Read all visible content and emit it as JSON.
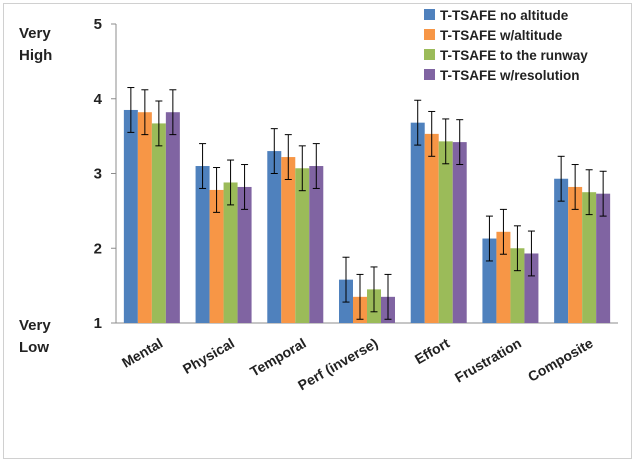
{
  "chart_data": {
    "type": "bar",
    "categories": [
      "Mental",
      "Physical",
      "Temporal",
      "Perf (inverse)",
      "Effort",
      "Frustration",
      "Composite"
    ],
    "series": [
      {
        "name": "T-TSAFE no altitude",
        "color": "#4f81bd",
        "values": [
          3.85,
          3.1,
          3.3,
          1.58,
          3.68,
          2.13,
          2.93
        ],
        "errors": [
          0.3,
          0.3,
          0.3,
          0.3,
          0.3,
          0.3,
          0.3
        ]
      },
      {
        "name": "T-TSAFE w/altitude",
        "color": "#f79646",
        "values": [
          3.82,
          2.78,
          3.22,
          1.35,
          3.53,
          2.22,
          2.82
        ],
        "errors": [
          0.3,
          0.3,
          0.3,
          0.3,
          0.3,
          0.3,
          0.3
        ]
      },
      {
        "name": "T-TSAFE to the runway",
        "color": "#9bbb59",
        "values": [
          3.67,
          2.88,
          3.07,
          1.45,
          3.43,
          2.0,
          2.75
        ],
        "errors": [
          0.3,
          0.3,
          0.3,
          0.3,
          0.3,
          0.3,
          0.3
        ]
      },
      {
        "name": "T-TSAFE w/resolution",
        "color": "#8064a2",
        "values": [
          3.82,
          2.82,
          3.1,
          1.35,
          3.42,
          1.93,
          2.73
        ],
        "errors": [
          0.3,
          0.3,
          0.3,
          0.3,
          0.3,
          0.3,
          0.3
        ]
      }
    ],
    "ylim": [
      1,
      5
    ],
    "yticks": [
      "1",
      "2",
      "3",
      "4",
      "5"
    ],
    "y_top_label": [
      "Very",
      "High"
    ],
    "y_bottom_label": [
      "Very",
      "Low"
    ],
    "legend_position": "top-right",
    "grid": false
  }
}
